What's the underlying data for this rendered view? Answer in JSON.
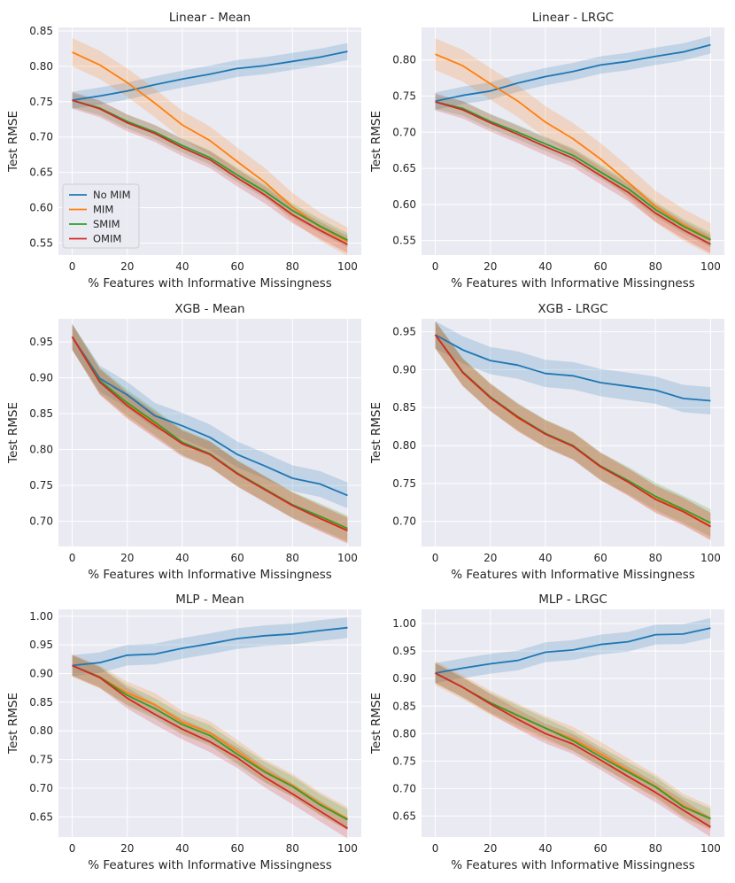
{
  "chart_data": {
    "type": "line",
    "x": [
      0,
      10,
      20,
      30,
      40,
      50,
      60,
      70,
      80,
      90,
      100
    ],
    "xlabel": "% Features with Informative Missingness",
    "ylabel": "Test RMSE",
    "xlim": [
      -5,
      105
    ],
    "xticks": [
      0,
      20,
      40,
      60,
      80,
      100
    ],
    "xtick_labels": [
      "0",
      "20",
      "40",
      "60",
      "80",
      "100"
    ],
    "grid": true,
    "legend": {
      "location": "center-left",
      "entries": [
        "No MIM",
        "MIM",
        "SMIM",
        "OMIM"
      ]
    },
    "series_styles": [
      {
        "name": "No MIM",
        "color": "#1f77b4"
      },
      {
        "name": "MIM",
        "color": "#ff7f0e"
      },
      {
        "name": "SMIM",
        "color": "#2ca02c"
      },
      {
        "name": "OMIM",
        "color": "#d62728"
      }
    ],
    "panels": [
      {
        "title": "Linear - Mean",
        "ylim": [
          0.533,
          0.855
        ],
        "yticks": [
          0.55,
          0.6,
          0.65,
          0.7,
          0.75,
          0.8,
          0.85
        ],
        "ytick_labels": [
          "0.55",
          "0.60",
          "0.65",
          "0.70",
          "0.75",
          "0.80",
          "0.85"
        ],
        "series": [
          {
            "name": "No MIM",
            "values": [
              0.752,
              0.758,
              0.765,
              0.774,
              0.782,
              0.789,
              0.797,
              0.801,
              0.807,
              0.813,
              0.821
            ],
            "band": 0.012
          },
          {
            "name": "MIM",
            "values": [
              0.82,
              0.802,
              0.777,
              0.748,
              0.717,
              0.695,
              0.665,
              0.636,
              0.601,
              0.573,
              0.552
            ],
            "band": 0.02
          },
          {
            "name": "SMIM",
            "values": [
              0.752,
              0.741,
              0.722,
              0.707,
              0.688,
              0.671,
              0.646,
              0.623,
              0.596,
              0.574,
              0.554
            ],
            "band": 0.01
          },
          {
            "name": "OMIM",
            "values": [
              0.752,
              0.74,
              0.72,
              0.705,
              0.685,
              0.668,
              0.642,
              0.618,
              0.59,
              0.568,
              0.548
            ],
            "band": 0.012
          }
        ]
      },
      {
        "title": "Linear - LRGC",
        "ylim": [
          0.53,
          0.845
        ],
        "yticks": [
          0.55,
          0.6,
          0.65,
          0.7,
          0.75,
          0.8
        ],
        "ytick_labels": [
          "0.55",
          "0.60",
          "0.65",
          "0.70",
          "0.75",
          "0.80"
        ],
        "series": [
          {
            "name": "No MIM",
            "values": [
              0.743,
              0.751,
              0.757,
              0.768,
              0.777,
              0.784,
              0.793,
              0.798,
              0.805,
              0.811,
              0.821
            ],
            "band": 0.012
          },
          {
            "name": "MIM",
            "values": [
              0.808,
              0.792,
              0.767,
              0.743,
              0.714,
              0.691,
              0.663,
              0.631,
              0.597,
              0.572,
              0.552
            ],
            "band": 0.022
          },
          {
            "name": "SMIM",
            "values": [
              0.742,
              0.733,
              0.715,
              0.7,
              0.684,
              0.668,
              0.645,
              0.622,
              0.593,
              0.57,
              0.551
            ],
            "band": 0.01
          },
          {
            "name": "OMIM",
            "values": [
              0.742,
              0.731,
              0.713,
              0.697,
              0.68,
              0.664,
              0.64,
              0.617,
              0.588,
              0.565,
              0.545
            ],
            "band": 0.012
          }
        ]
      },
      {
        "title": "XGB - Mean",
        "ylim": [
          0.665,
          0.982
        ],
        "yticks": [
          0.7,
          0.75,
          0.8,
          0.85,
          0.9,
          0.95
        ],
        "ytick_labels": [
          "0.70",
          "0.75",
          "0.80",
          "0.85",
          "0.90",
          "0.95"
        ],
        "series": [
          {
            "name": "No MIM",
            "values": [
              0.957,
              0.899,
              0.876,
              0.847,
              0.833,
              0.817,
              0.793,
              0.777,
              0.76,
              0.752,
              0.736
            ],
            "band": 0.018
          },
          {
            "name": "MIM",
            "values": [
              0.957,
              0.895,
              0.862,
              0.836,
              0.81,
              0.793,
              0.767,
              0.745,
              0.723,
              0.705,
              0.688
            ],
            "band": 0.018
          },
          {
            "name": "SMIM",
            "values": [
              0.957,
              0.896,
              0.865,
              0.838,
              0.81,
              0.794,
              0.767,
              0.745,
              0.723,
              0.707,
              0.69
            ],
            "band": 0.018
          },
          {
            "name": "OMIM",
            "values": [
              0.957,
              0.894,
              0.861,
              0.834,
              0.808,
              0.793,
              0.766,
              0.744,
              0.722,
              0.704,
              0.687
            ],
            "band": 0.018
          }
        ]
      },
      {
        "title": "XGB - LRGC",
        "ylim": [
          0.667,
          0.967
        ],
        "yticks": [
          0.7,
          0.75,
          0.8,
          0.85,
          0.9,
          0.95
        ],
        "ytick_labels": [
          "0.70",
          "0.75",
          "0.80",
          "0.85",
          "0.90",
          "0.95"
        ],
        "series": [
          {
            "name": "No MIM",
            "values": [
              0.946,
              0.926,
              0.912,
              0.906,
              0.895,
              0.892,
              0.883,
              0.878,
              0.873,
              0.862,
              0.859
            ],
            "band": 0.018
          },
          {
            "name": "MIM",
            "values": [
              0.946,
              0.897,
              0.864,
              0.836,
              0.816,
              0.8,
              0.773,
              0.752,
              0.73,
              0.714,
              0.694
            ],
            "band": 0.018
          },
          {
            "name": "SMIM",
            "values": [
              0.946,
              0.897,
              0.864,
              0.838,
              0.816,
              0.8,
              0.773,
              0.754,
              0.733,
              0.716,
              0.698
            ],
            "band": 0.018
          },
          {
            "name": "OMIM",
            "values": [
              0.946,
              0.896,
              0.863,
              0.837,
              0.815,
              0.799,
              0.772,
              0.752,
              0.729,
              0.713,
              0.693
            ],
            "band": 0.018
          }
        ]
      },
      {
        "title": "MLP - Mean",
        "ylim": [
          0.615,
          1.012
        ],
        "yticks": [
          0.65,
          0.7,
          0.75,
          0.8,
          0.85,
          0.9,
          0.95,
          1.0
        ],
        "ytick_labels": [
          "0.65",
          "0.70",
          "0.75",
          "0.80",
          "0.85",
          "0.90",
          "0.95",
          "1.00"
        ],
        "series": [
          {
            "name": "No MIM",
            "values": [
              0.914,
              0.919,
              0.932,
              0.934,
              0.944,
              0.952,
              0.961,
              0.966,
              0.969,
              0.975,
              0.98
            ],
            "band": 0.018
          },
          {
            "name": "MIM",
            "values": [
              0.914,
              0.894,
              0.866,
              0.846,
              0.815,
              0.797,
              0.764,
              0.73,
              0.705,
              0.673,
              0.647
            ],
            "band": 0.02
          },
          {
            "name": "SMIM",
            "values": [
              0.914,
              0.894,
              0.862,
              0.839,
              0.811,
              0.792,
              0.759,
              0.728,
              0.703,
              0.671,
              0.645
            ],
            "band": 0.018
          },
          {
            "name": "OMIM",
            "values": [
              0.914,
              0.893,
              0.857,
              0.829,
              0.803,
              0.781,
              0.753,
              0.719,
              0.69,
              0.66,
              0.63
            ],
            "band": 0.018
          }
        ]
      },
      {
        "title": "MLP - LRGC",
        "ylim": [
          0.612,
          1.026
        ],
        "yticks": [
          0.65,
          0.7,
          0.75,
          0.8,
          0.85,
          0.9,
          0.95,
          1.0
        ],
        "ytick_labels": [
          "0.65",
          "0.70",
          "0.75",
          "0.80",
          "0.85",
          "0.90",
          "0.95",
          "1.00"
        ],
        "series": [
          {
            "name": "No MIM",
            "values": [
              0.91,
              0.919,
              0.927,
              0.933,
              0.948,
              0.952,
              0.962,
              0.967,
              0.98,
              0.981,
              0.992
            ],
            "band": 0.018
          },
          {
            "name": "MIM",
            "values": [
              0.91,
              0.884,
              0.856,
              0.832,
              0.81,
              0.79,
              0.763,
              0.733,
              0.704,
              0.669,
              0.646
            ],
            "band": 0.022
          },
          {
            "name": "SMIM",
            "values": [
              0.91,
              0.884,
              0.856,
              0.833,
              0.81,
              0.787,
              0.758,
              0.73,
              0.703,
              0.667,
              0.645
            ],
            "band": 0.018
          },
          {
            "name": "OMIM",
            "values": [
              0.91,
              0.884,
              0.854,
              0.826,
              0.8,
              0.781,
              0.752,
              0.722,
              0.693,
              0.661,
              0.63
            ],
            "band": 0.018
          }
        ]
      }
    ]
  }
}
